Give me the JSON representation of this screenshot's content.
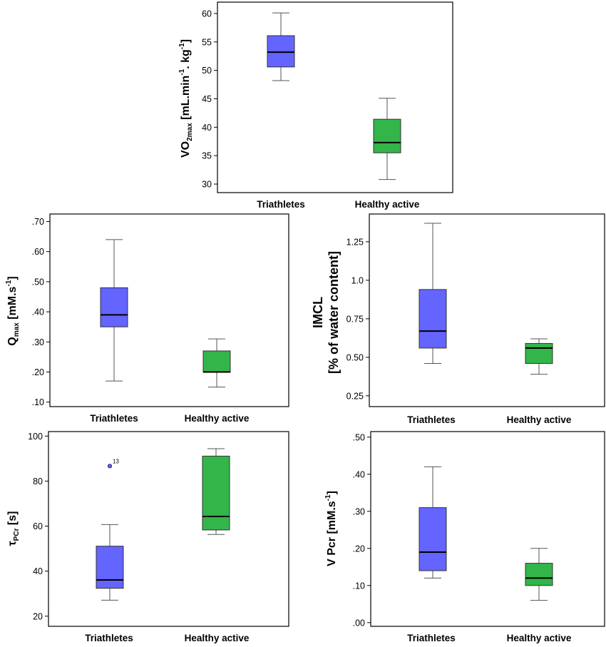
{
  "colors": {
    "triathletes": "#6464ff",
    "healthy_active": "#33b54a"
  },
  "chart_data": [
    {
      "id": "vo2",
      "type": "box",
      "ylabel": "VO2max [mL.min-1. kg-1]",
      "ylabel_parts": {
        "main1": "VO",
        "sub1": "2max",
        "main2": " [mL.min",
        "sup1": "-1",
        "main3": ". kg",
        "sup2": "-1",
        "main4": "]"
      },
      "ylim": [
        28.5,
        62
      ],
      "ticks": [
        30,
        35,
        40,
        45,
        50,
        55,
        60
      ],
      "tick_labels": [
        "30",
        "35",
        "40",
        "45",
        "50",
        "55",
        "60"
      ],
      "categories": [
        "Triathletes",
        "Healthy active"
      ],
      "boxes": [
        {
          "group": "Triathletes",
          "min": 48.2,
          "q1": 50.6,
          "median": 53.2,
          "q3": 56.1,
          "max": 60.1
        },
        {
          "group": "Healthy active",
          "min": 30.8,
          "q1": 35.5,
          "median": 37.3,
          "q3": 41.4,
          "max": 45.1
        }
      ]
    },
    {
      "id": "qmax",
      "type": "box",
      "ylabel": "Qmax [mM.s-1]",
      "ylabel_parts": {
        "main1": "Q",
        "sub1": "max",
        "main2": " [mM.s",
        "sup1": "-1",
        "main3": "]"
      },
      "ylim": [
        0.085,
        0.725
      ],
      "ticks": [
        0.1,
        0.2,
        0.3,
        0.4,
        0.5,
        0.6,
        0.7
      ],
      "tick_labels": [
        ".10",
        ".20",
        ".30",
        ".40",
        ".50",
        ".60",
        ".70"
      ],
      "categories": [
        "Triathletes",
        "Healthy active"
      ],
      "boxes": [
        {
          "group": "Triathletes",
          "min": 0.17,
          "q1": 0.35,
          "median": 0.39,
          "q3": 0.48,
          "max": 0.64
        },
        {
          "group": "Healthy active",
          "min": 0.15,
          "q1": 0.2,
          "median": 0.2,
          "q3": 0.27,
          "max": 0.31
        }
      ]
    },
    {
      "id": "imcl",
      "type": "box",
      "ylabel": "IMCL",
      "ylabel2": "[% of water content]",
      "ylim": [
        0.18,
        1.43
      ],
      "ticks": [
        0.25,
        0.5,
        0.75,
        1.0,
        1.25
      ],
      "tick_labels": [
        "0.25",
        "0.50",
        "0.75",
        "1.0",
        "1.25"
      ],
      "categories": [
        "Triathletes",
        "Healthy active"
      ],
      "boxes": [
        {
          "group": "Triathletes",
          "min": 0.46,
          "q1": 0.56,
          "median": 0.67,
          "q3": 0.94,
          "max": 1.37
        },
        {
          "group": "Healthy active",
          "min": 0.39,
          "q1": 0.46,
          "median": 0.56,
          "q3": 0.59,
          "max": 0.62
        }
      ]
    },
    {
      "id": "tau",
      "type": "box",
      "ylabel": "τPCr [s]",
      "ylabel_parts": {
        "main1": "τ",
        "sub1": "PCr",
        "main2": " [s]"
      },
      "ylim": [
        15.5,
        102
      ],
      "ticks": [
        20,
        40,
        60,
        80,
        100
      ],
      "tick_labels": [
        "20",
        "40",
        "60",
        "80",
        "100"
      ],
      "categories": [
        "Triathletes",
        "Healthy active"
      ],
      "boxes": [
        {
          "group": "Triathletes",
          "min": 27.1,
          "q1": 32.4,
          "median": 36.1,
          "q3": 51.1,
          "max": 60.7,
          "outliers": [
            {
              "value": 86.7,
              "label": "13"
            }
          ]
        },
        {
          "group": "Healthy active",
          "min": 56.3,
          "q1": 58.3,
          "median": 64.3,
          "q3": 91.1,
          "max": 94.4
        }
      ]
    },
    {
      "id": "vpcr",
      "type": "box",
      "ylabel": "V Pcr [mM.s-1]",
      "ylabel_parts": {
        "main1": "V Pcr [mM.s",
        "sup1": "-1",
        "main2": "]"
      },
      "ylim": [
        -0.01,
        0.515
      ],
      "ticks": [
        0.0,
        0.1,
        0.2,
        0.3,
        0.4,
        0.5
      ],
      "tick_labels": [
        ".00",
        ".10",
        ".20",
        ".30",
        ".40",
        ".50"
      ],
      "categories": [
        "Triathletes",
        "Healthy active"
      ],
      "boxes": [
        {
          "group": "Triathletes",
          "min": 0.12,
          "q1": 0.14,
          "median": 0.19,
          "q3": 0.31,
          "max": 0.42
        },
        {
          "group": "Healthy active",
          "min": 0.06,
          "q1": 0.1,
          "median": 0.12,
          "q3": 0.16,
          "max": 0.2
        }
      ]
    }
  ]
}
